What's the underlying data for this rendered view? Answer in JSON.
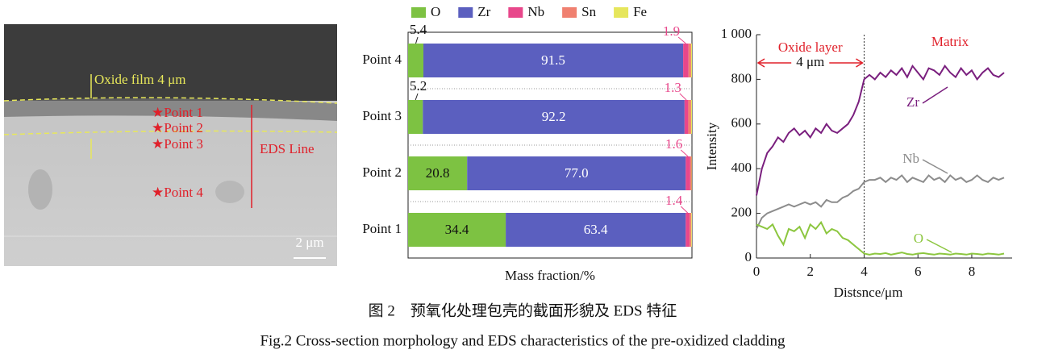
{
  "image_panel": {
    "oxide_label": "Oxide film 4 μm",
    "points": [
      "Point 1",
      "Point 2",
      "Point 3",
      "Point 4"
    ],
    "line_label": "EDS Line",
    "scale_label": "2 μm"
  },
  "chart_data": [
    {
      "type": "bar",
      "orientation": "horizontal",
      "stacked": true,
      "x_label": "Mass fraction/%",
      "categories": [
        "Point 4",
        "Point 3",
        "Point 2",
        "Point 1"
      ],
      "xlim": [
        0,
        100
      ],
      "series": [
        {
          "name": "O",
          "color": "#7dc242",
          "labels": true,
          "values": [
            5.4,
            5.2,
            20.8,
            34.4
          ]
        },
        {
          "name": "Zr",
          "color": "#5b5fbf",
          "labels": true,
          "values": [
            91.5,
            92.2,
            77.0,
            63.4
          ],
          "value_labels": [
            "91.5",
            "92.2",
            "77.0",
            "63.4"
          ]
        },
        {
          "name": "Nb",
          "color": "#e8478b",
          "labels": true,
          "values": [
            1.9,
            1.3,
            1.6,
            1.4
          ]
        },
        {
          "name": "Sn",
          "color": "#f08070",
          "labels": false,
          "values": [
            0.9,
            1.0,
            0.5,
            0.6
          ]
        },
        {
          "name": "Fe",
          "color": "#e6e65c",
          "labels": false,
          "values": [
            0.3,
            0.3,
            0.1,
            0.2
          ]
        }
      ]
    },
    {
      "type": "line",
      "x_label": "Distsnce/μm",
      "y_label": "Intensity",
      "xlim": [
        0,
        9.5
      ],
      "ylim": [
        0,
        1000
      ],
      "xticks": [
        0,
        2,
        4,
        6,
        8
      ],
      "yticks": [
        0,
        200,
        400,
        600,
        800,
        {
          "value": 1000,
          "label": "1 000"
        }
      ],
      "annotations": {
        "left": "Oxide layer",
        "right": "Matrix",
        "span": "4 μm"
      },
      "boundary_x": 4,
      "x": [
        0,
        0.2,
        0.4,
        0.6,
        0.8,
        1.0,
        1.2,
        1.4,
        1.6,
        1.8,
        2.0,
        2.2,
        2.4,
        2.6,
        2.8,
        3.0,
        3.2,
        3.4,
        3.6,
        3.8,
        4.0,
        4.2,
        4.4,
        4.6,
        4.8,
        5.0,
        5.2,
        5.4,
        5.6,
        5.8,
        6.0,
        6.2,
        6.4,
        6.6,
        6.8,
        7.0,
        7.2,
        7.4,
        7.6,
        7.8,
        8.0,
        8.2,
        8.4,
        8.6,
        8.8,
        9.0,
        9.2
      ],
      "series": [
        {
          "name": "Zr",
          "color": "#7a1f7e",
          "values": [
            280,
            400,
            470,
            500,
            540,
            520,
            560,
            580,
            550,
            570,
            540,
            580,
            560,
            600,
            570,
            560,
            580,
            600,
            640,
            700,
            800,
            820,
            800,
            830,
            810,
            840,
            820,
            850,
            810,
            860,
            830,
            800,
            850,
            840,
            820,
            860,
            830,
            810,
            850,
            820,
            840,
            800,
            830,
            850,
            820,
            810,
            830
          ]
        },
        {
          "name": "Nb",
          "color": "#8c8c8c",
          "values": [
            130,
            180,
            200,
            210,
            220,
            230,
            240,
            230,
            240,
            250,
            240,
            250,
            230,
            260,
            250,
            250,
            270,
            280,
            300,
            310,
            340,
            350,
            350,
            360,
            340,
            360,
            350,
            370,
            340,
            360,
            350,
            340,
            370,
            350,
            360,
            340,
            370,
            350,
            360,
            340,
            350,
            370,
            350,
            340,
            360,
            350,
            360
          ]
        },
        {
          "name": "O",
          "color": "#8cc63f",
          "values": [
            150,
            140,
            130,
            150,
            100,
            60,
            130,
            120,
            140,
            90,
            150,
            130,
            160,
            110,
            130,
            120,
            90,
            80,
            60,
            40,
            20,
            15,
            20,
            18,
            22,
            15,
            20,
            25,
            18,
            15,
            20,
            22,
            18,
            15,
            20,
            18,
            15,
            20,
            18,
            15,
            20,
            18,
            15,
            20,
            18,
            15,
            20
          ]
        }
      ]
    }
  ],
  "caption": {
    "cn": "图 2　预氧化处理包壳的截面形貌及 EDS 特征",
    "en": "Fig.2 Cross-section morphology and EDS characteristics of the pre-oxidized cladding"
  }
}
